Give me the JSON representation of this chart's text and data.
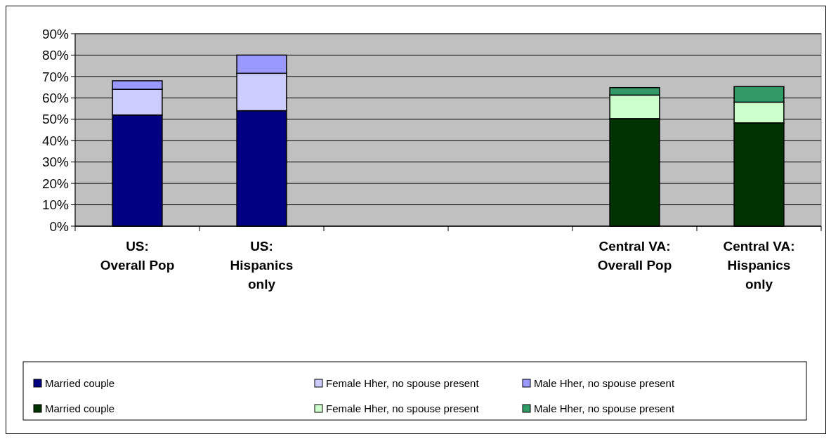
{
  "chart_data": {
    "type": "bar",
    "stacked": true,
    "categories": [
      "US: Overall Pop",
      "US: Hispanics only",
      null,
      null,
      "Central VA: Overall Pop",
      "Central VA: Hispanics only"
    ],
    "series": [
      {
        "name": "Married couple",
        "color": "#000080",
        "values": [
          52,
          54,
          null,
          null,
          null,
          null
        ]
      },
      {
        "name": "Female Hher, no spouse present",
        "color": "#ccccff",
        "values": [
          12,
          17.5,
          null,
          null,
          null,
          null
        ]
      },
      {
        "name": "Male Hher, no spouse present",
        "color": "#9999ff",
        "values": [
          4,
          8.5,
          null,
          null,
          null,
          null
        ]
      },
      {
        "name": "Married couple",
        "color": "#003300",
        "values": [
          null,
          null,
          null,
          null,
          50.3,
          48.3
        ]
      },
      {
        "name": "Female Hher, no spouse present",
        "color": "#ccffcc",
        "values": [
          null,
          null,
          null,
          null,
          11,
          9.7
        ]
      },
      {
        "name": "Male Hher, no spouse present",
        "color": "#339966",
        "values": [
          null,
          null,
          null,
          null,
          3.5,
          7.3
        ]
      }
    ],
    "ylim": [
      0,
      90
    ],
    "yticks": [
      {
        "value": 0,
        "label": "0%"
      },
      {
        "value": 10,
        "label": "10%"
      },
      {
        "value": 20,
        "label": "20%"
      },
      {
        "value": 30,
        "label": "30%"
      },
      {
        "value": 40,
        "label": "40%"
      },
      {
        "value": 50,
        "label": "50%"
      },
      {
        "value": 60,
        "label": "60%"
      },
      {
        "value": 70,
        "label": "70%"
      },
      {
        "value": 80,
        "label": "80%"
      },
      {
        "value": 90,
        "label": "90%"
      }
    ],
    "grid": "y",
    "legend": "bottom"
  }
}
